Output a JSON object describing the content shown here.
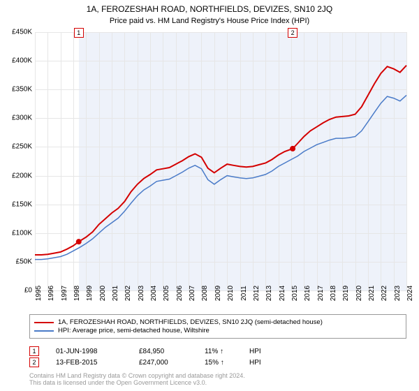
{
  "title": "1A, FEROZESHAH ROAD, NORTHFIELDS, DEVIZES, SN10 2JQ",
  "subtitle": "Price paid vs. HM Land Registry's House Price Index (HPI)",
  "chart": {
    "type": "line",
    "background_color": "#ffffff",
    "shaded_region_color": "#eef2fa",
    "grid_color": "#e6e6e6",
    "ylim": [
      0,
      450000
    ],
    "ytick_step": 50000,
    "ytick_prefix": "£",
    "ytick_suffix": "K",
    "yticks": [
      "£0",
      "£50K",
      "£100K",
      "£150K",
      "£200K",
      "£250K",
      "£300K",
      "£350K",
      "£400K",
      "£450K"
    ],
    "xlim": [
      1995,
      2024
    ],
    "xticks": [
      1995,
      1996,
      1997,
      1998,
      1999,
      2000,
      2001,
      2002,
      2003,
      2004,
      2005,
      2006,
      2007,
      2008,
      2009,
      2010,
      2011,
      2012,
      2013,
      2014,
      2015,
      2016,
      2017,
      2018,
      2019,
      2020,
      2021,
      2022,
      2023,
      2024
    ],
    "series": [
      {
        "name": "price_paid",
        "label": "1A, FEROZESHAH ROAD, NORTHFIELDS, DEVIZES, SN10 2JQ (semi-detached house)",
        "color": "#d40000",
        "line_width": 2,
        "data": [
          [
            1995,
            62000
          ],
          [
            1995.5,
            62000
          ],
          [
            1996,
            63000
          ],
          [
            1996.5,
            65000
          ],
          [
            1997,
            67000
          ],
          [
            1997.5,
            72000
          ],
          [
            1998,
            78000
          ],
          [
            1998.42,
            84950
          ],
          [
            1999,
            93000
          ],
          [
            1999.5,
            102000
          ],
          [
            2000,
            115000
          ],
          [
            2000.5,
            125000
          ],
          [
            2001,
            135000
          ],
          [
            2001.5,
            143000
          ],
          [
            2002,
            155000
          ],
          [
            2002.5,
            172000
          ],
          [
            2003,
            185000
          ],
          [
            2003.5,
            195000
          ],
          [
            2004,
            202000
          ],
          [
            2004.5,
            210000
          ],
          [
            2005,
            212000
          ],
          [
            2005.5,
            214000
          ],
          [
            2006,
            220000
          ],
          [
            2006.5,
            226000
          ],
          [
            2007,
            233000
          ],
          [
            2007.5,
            238000
          ],
          [
            2008,
            232000
          ],
          [
            2008.5,
            213000
          ],
          [
            2009,
            205000
          ],
          [
            2009.5,
            213000
          ],
          [
            2010,
            220000
          ],
          [
            2010.5,
            218000
          ],
          [
            2011,
            216000
          ],
          [
            2011.5,
            215000
          ],
          [
            2012,
            216000
          ],
          [
            2012.5,
            219000
          ],
          [
            2013,
            222000
          ],
          [
            2013.5,
            228000
          ],
          [
            2014,
            236000
          ],
          [
            2014.5,
            242000
          ],
          [
            2015.12,
            247000
          ],
          [
            2015.5,
            256000
          ],
          [
            2016,
            268000
          ],
          [
            2016.5,
            278000
          ],
          [
            2017,
            285000
          ],
          [
            2017.5,
            292000
          ],
          [
            2018,
            298000
          ],
          [
            2018.5,
            302000
          ],
          [
            2019,
            303000
          ],
          [
            2019.5,
            304000
          ],
          [
            2020,
            307000
          ],
          [
            2020.5,
            320000
          ],
          [
            2021,
            340000
          ],
          [
            2021.5,
            360000
          ],
          [
            2022,
            378000
          ],
          [
            2022.5,
            390000
          ],
          [
            2023,
            386000
          ],
          [
            2023.5,
            380000
          ],
          [
            2024,
            392000
          ]
        ]
      },
      {
        "name": "hpi",
        "label": "HPI: Average price, semi-detached house, Wiltshire",
        "color": "#4a7bc8",
        "line_width": 1.5,
        "data": [
          [
            1995,
            54000
          ],
          [
            1995.5,
            54000
          ],
          [
            1996,
            55000
          ],
          [
            1996.5,
            57000
          ],
          [
            1997,
            59000
          ],
          [
            1997.5,
            63000
          ],
          [
            1998,
            69000
          ],
          [
            1998.5,
            75000
          ],
          [
            1999,
            82000
          ],
          [
            1999.5,
            90000
          ],
          [
            2000,
            100000
          ],
          [
            2000.5,
            110000
          ],
          [
            2001,
            118000
          ],
          [
            2001.5,
            126000
          ],
          [
            2002,
            138000
          ],
          [
            2002.5,
            152000
          ],
          [
            2003,
            165000
          ],
          [
            2003.5,
            175000
          ],
          [
            2004,
            182000
          ],
          [
            2004.5,
            190000
          ],
          [
            2005,
            192000
          ],
          [
            2005.5,
            194000
          ],
          [
            2006,
            200000
          ],
          [
            2006.5,
            206000
          ],
          [
            2007,
            213000
          ],
          [
            2007.5,
            218000
          ],
          [
            2008,
            212000
          ],
          [
            2008.5,
            193000
          ],
          [
            2009,
            185000
          ],
          [
            2009.5,
            193000
          ],
          [
            2010,
            200000
          ],
          [
            2010.5,
            198000
          ],
          [
            2011,
            196000
          ],
          [
            2011.5,
            195000
          ],
          [
            2012,
            196000
          ],
          [
            2012.5,
            199000
          ],
          [
            2013,
            202000
          ],
          [
            2013.5,
            208000
          ],
          [
            2014,
            216000
          ],
          [
            2014.5,
            222000
          ],
          [
            2015,
            228000
          ],
          [
            2015.5,
            234000
          ],
          [
            2016,
            242000
          ],
          [
            2016.5,
            248000
          ],
          [
            2017,
            254000
          ],
          [
            2017.5,
            258000
          ],
          [
            2018,
            262000
          ],
          [
            2018.5,
            265000
          ],
          [
            2019,
            265000
          ],
          [
            2019.5,
            266000
          ],
          [
            2020,
            268000
          ],
          [
            2020.5,
            278000
          ],
          [
            2021,
            294000
          ],
          [
            2021.5,
            310000
          ],
          [
            2022,
            326000
          ],
          [
            2022.5,
            338000
          ],
          [
            2023,
            335000
          ],
          [
            2023.5,
            330000
          ],
          [
            2024,
            340000
          ]
        ]
      }
    ],
    "markers": [
      {
        "id": "1",
        "x": 1998.42,
        "y": 84950,
        "border_color": "#d40000",
        "dot_color": "#d40000"
      },
      {
        "id": "2",
        "x": 2015.12,
        "y": 247000,
        "border_color": "#d40000",
        "dot_color": "#d40000"
      }
    ],
    "shaded_x": [
      1998.42,
      2024
    ]
  },
  "legend": {
    "border_color": "#999999"
  },
  "events": [
    {
      "id": "1",
      "date": "01-JUN-1998",
      "price": "£84,950",
      "pct": "11%",
      "suffix": "HPI",
      "border_color": "#d40000"
    },
    {
      "id": "2",
      "date": "13-FEB-2015",
      "price": "£247,000",
      "pct": "15%",
      "suffix": "HPI",
      "border_color": "#d40000"
    }
  ],
  "footer": {
    "line1": "Contains HM Land Registry data © Crown copyright and database right 2024.",
    "line2": "This data is licensed under the Open Government Licence v3.0.",
    "color": "#999999"
  }
}
